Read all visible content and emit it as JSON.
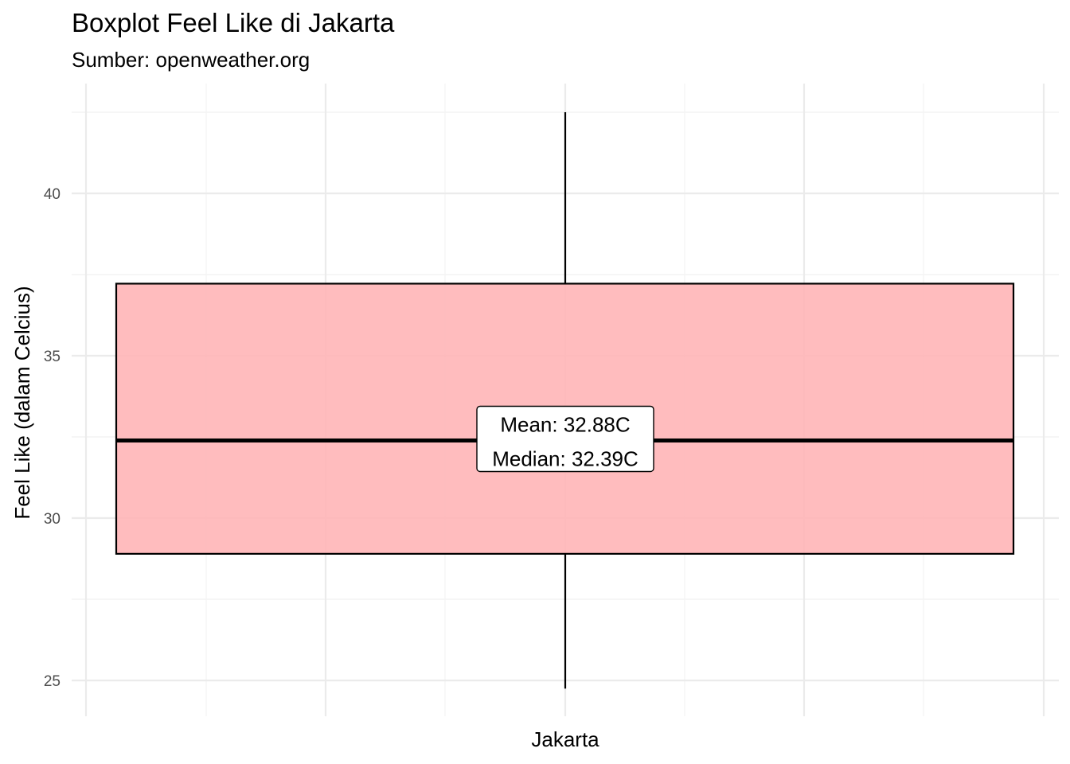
{
  "chart_data": {
    "type": "boxplot",
    "title": "Boxplot Feel Like di Jakarta",
    "subtitle": "Sumber: openweather.org",
    "xlabel": "",
    "ylabel": "Feel Like (dalam Celcius)",
    "categories": [
      "Jakarta"
    ],
    "ylim": [
      23.9,
      43.5
    ],
    "y_ticks": [
      25,
      30,
      35,
      40
    ],
    "y_tick_labels": [
      "25",
      "30",
      "35",
      "40"
    ],
    "grid": true,
    "boxes": [
      {
        "category": "Jakarta",
        "min": 24.75,
        "q1": 28.9,
        "median": 32.39,
        "q3": 37.22,
        "max": 42.5,
        "mean": 32.88
      }
    ],
    "annotation": {
      "lines": [
        "Mean: 32.88C",
        "Median: 32.39C"
      ],
      "y": 32.39
    },
    "colors": {
      "box_fill": "#ffb3b5",
      "box_stroke": "#000000",
      "grid_major": "#ebebeb",
      "grid_minor": "#f4f4f4"
    }
  }
}
